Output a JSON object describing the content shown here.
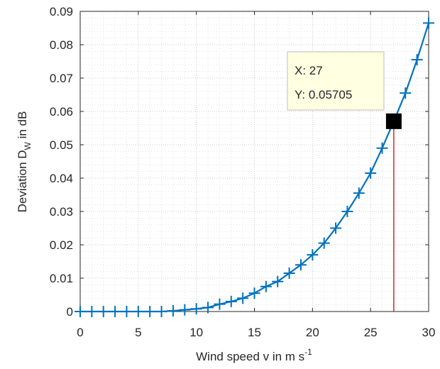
{
  "chart_data": {
    "type": "line",
    "title": "",
    "xlabel": {
      "main": "Wind speed v in m s",
      "sup": "-1"
    },
    "ylabel": {
      "pre": "Deviation D",
      "sub": "W",
      "post": "  in dB"
    },
    "xlim": [
      0,
      30
    ],
    "ylim": [
      0,
      0.09
    ],
    "xticks": [
      0,
      5,
      10,
      15,
      20,
      25,
      30
    ],
    "yticks": [
      0,
      0.01,
      0.02,
      0.03,
      0.04,
      0.05,
      0.06,
      0.07,
      0.08,
      0.09
    ],
    "ytick_labels": [
      "0",
      "0.01",
      "0.02",
      "0.03",
      "0.04",
      "0.05",
      "0.06",
      "0.07",
      "0.08",
      "0.09"
    ],
    "grid": true,
    "minor_grid": true,
    "line_color": "#0072BD",
    "marker": "plus",
    "series": [
      {
        "x": [
          0,
          1,
          2,
          3,
          4,
          5,
          6,
          7,
          8,
          9,
          10,
          11,
          12,
          13,
          14,
          15,
          16,
          17,
          18,
          19,
          20,
          21,
          22,
          23,
          24,
          25,
          26,
          27,
          28,
          29,
          30
        ],
        "y": [
          0,
          0,
          0,
          0,
          0,
          0,
          0,
          0,
          0.0002,
          0.0005,
          0.0008,
          0.0012,
          0.0022,
          0.003,
          0.004,
          0.0055,
          0.0075,
          0.009,
          0.0115,
          0.014,
          0.017,
          0.0205,
          0.025,
          0.03,
          0.0355,
          0.0415,
          0.049,
          0.05705,
          0.0655,
          0.0755,
          0.0865
        ]
      }
    ],
    "datatip": {
      "x": 27,
      "y": 0.05705,
      "x_text": "X: 27",
      "y_text": "Y: 0.05705",
      "drop_line_color": "#d62728"
    }
  }
}
